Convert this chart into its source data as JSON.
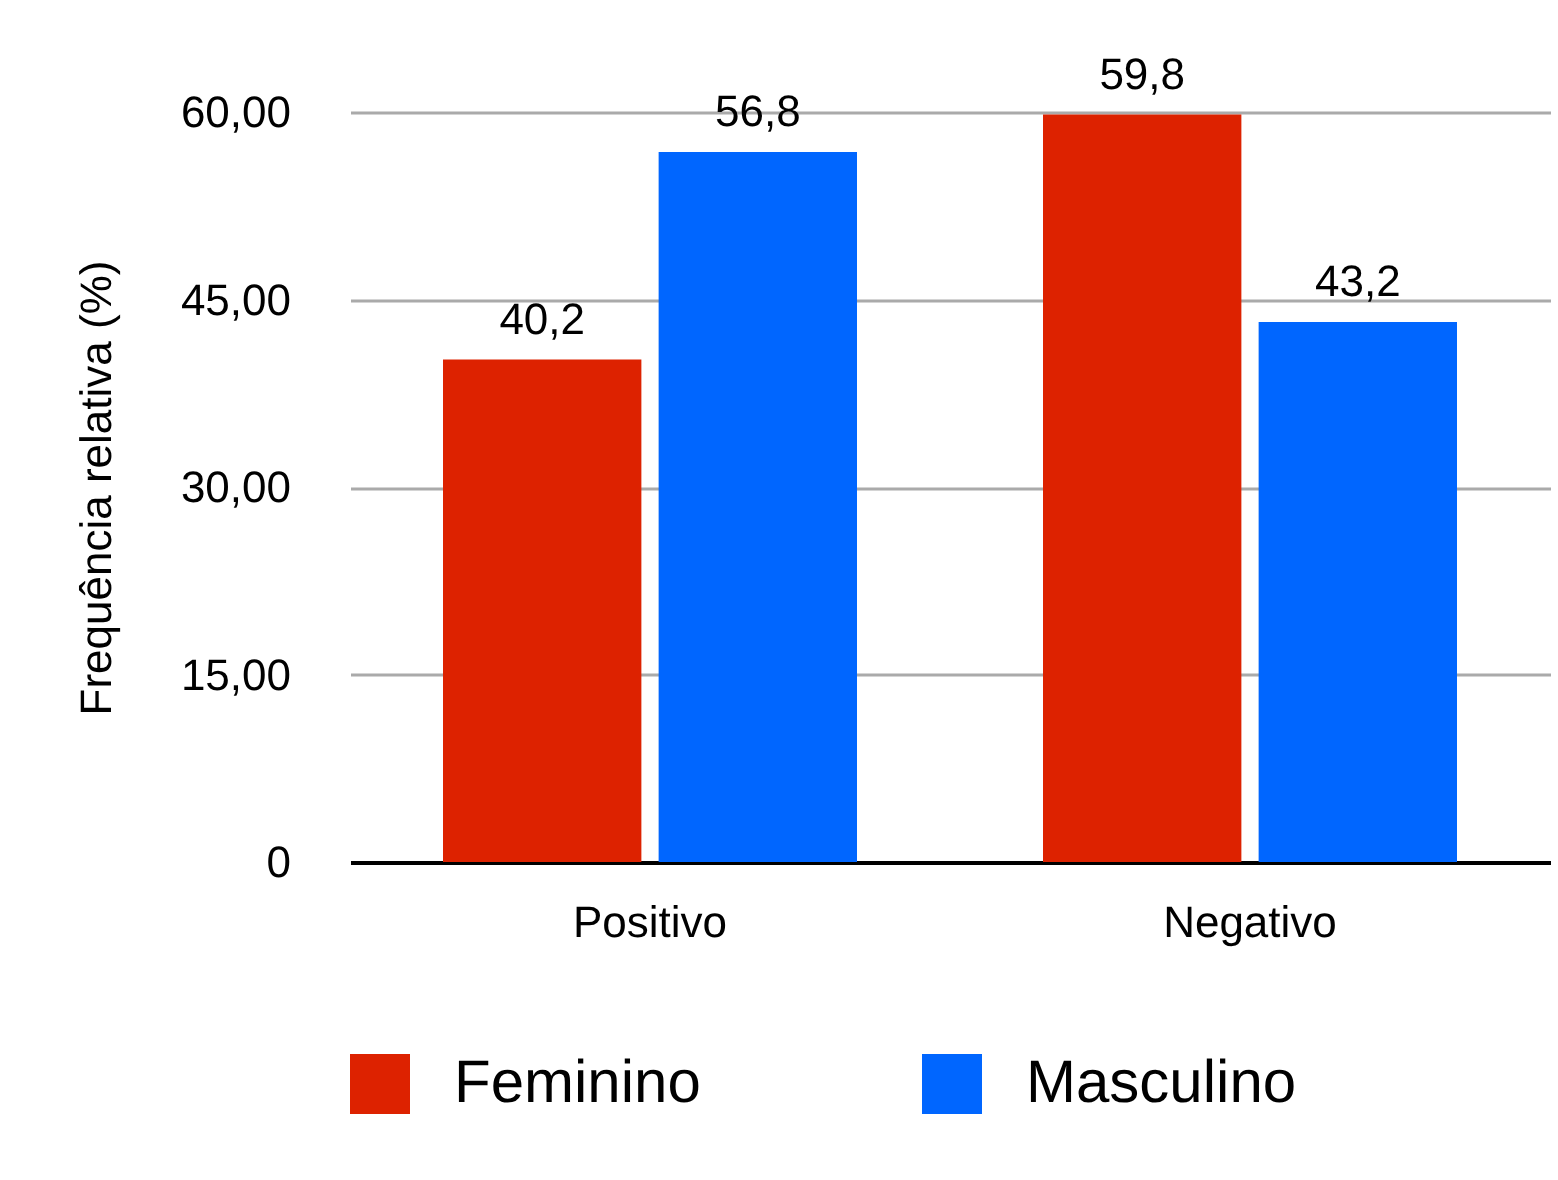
{
  "chart_data": {
    "type": "bar",
    "ylabel": "Frequência relativa (%)",
    "categories": [
      "Positivo",
      "Negativo"
    ],
    "series": [
      {
        "name": "Feminino",
        "color": "#dd2200",
        "values": [
          40.2,
          59.8
        ],
        "value_labels": [
          "40,2",
          "59,8"
        ]
      },
      {
        "name": "Masculino",
        "color": "#0066ff",
        "values": [
          56.8,
          43.2
        ],
        "value_labels": [
          "56,8",
          "43,2"
        ]
      }
    ],
    "ylim": [
      0,
      60
    ],
    "yticks": [
      {
        "value": 0,
        "label": "0"
      },
      {
        "value": 15,
        "label": "15,00"
      },
      {
        "value": 30,
        "label": "30,00"
      },
      {
        "value": 45,
        "label": "45,00"
      },
      {
        "value": 60,
        "label": "60,00"
      }
    ],
    "grid": "y",
    "legend": "bottom"
  }
}
